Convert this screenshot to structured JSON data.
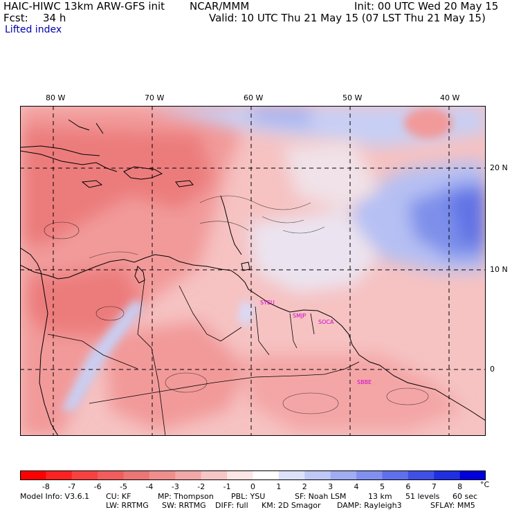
{
  "header": {
    "model": "HAIC-HIWC 13km ARW-GFS init",
    "org": "NCAR/MMM",
    "init": "Init: 00 UTC Wed 20 May 15",
    "fcst_label": "Fcst:",
    "fcst_value": "34 h",
    "valid": "Valid: 10 UTC Thu 21 May 15 (07 LST Thu 21 May 15)",
    "field": "Lifted index"
  },
  "map": {
    "lon_labels": [
      "80 W",
      "70 W",
      "60 W",
      "50 W",
      "40 W"
    ],
    "lat_labels": [
      "20 N",
      "10 N",
      "0"
    ],
    "stations": [
      "SYEU",
      "SMJP",
      "SOCA",
      "SBBE"
    ],
    "colors": {
      "neutral": "#ffffff",
      "warm_light": "#f9c8c8",
      "warm_mid": "#f29a9a",
      "warm_strong": "#ec7b7b",
      "cool_light": "#d6dcf8",
      "cool_mid": "#a8b4f0",
      "cool_strong": "#6a7fe8",
      "coast": "#000000",
      "grid": "#000000",
      "station": "#d000d0"
    }
  },
  "colorbar": {
    "labels": [
      "-8",
      "-7",
      "-6",
      "-5",
      "-4",
      "-3",
      "-2",
      "-1",
      "0",
      "1",
      "2",
      "3",
      "4",
      "5",
      "6",
      "7",
      "8"
    ],
    "unit": "°C",
    "colors": [
      "#ff0000",
      "#fd2222",
      "#f74141",
      "#f15c5c",
      "#ec7575",
      "#f08e8e",
      "#f3a8a8",
      "#f6c6c6",
      "#fbe5e5",
      "#ffffff",
      "#dde2fb",
      "#c0c8f7",
      "#a0adf3",
      "#8090ef",
      "#6070eb",
      "#4050e6",
      "#2030e0",
      "#0000dd"
    ]
  },
  "footer": {
    "line1": [
      "Model Info: V3.6.1",
      "CU: KF",
      "MP: Thompson",
      "PBL: YSU",
      "SF: Noah LSM",
      "13 km",
      "51 levels",
      "60 sec"
    ],
    "line2": [
      "LW: RRTMG",
      "SW: RRTMG",
      "DIFF: full",
      "KM: 2D Smagor",
      "DAMP: Rayleigh3",
      "SFLAY: MM5"
    ]
  }
}
